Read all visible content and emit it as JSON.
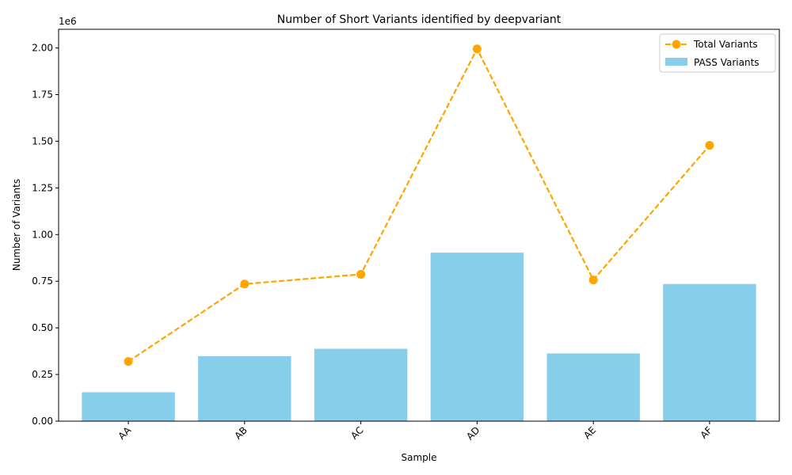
{
  "chart_data": {
    "type": "bar",
    "title": "Number of Short Variants identified by deepvariant",
    "xlabel": "Sample",
    "ylabel": "Number of Variants",
    "y_offset_label": "1e6",
    "categories": [
      "AA",
      "AB",
      "AC",
      "AD",
      "AE",
      "AF"
    ],
    "ylim": [
      0,
      2100000
    ],
    "yticks": [
      0,
      250000,
      500000,
      750000,
      1000000,
      1250000,
      1500000,
      1750000,
      2000000
    ],
    "ytick_labels": [
      "0.00",
      "0.25",
      "0.50",
      "0.75",
      "1.00",
      "1.25",
      "1.50",
      "1.75",
      "2.00"
    ],
    "grid": false,
    "legend_position": "top-right",
    "series": [
      {
        "name": "Total Variants",
        "kind": "line",
        "style": "dashed",
        "marker": "circle",
        "color": "#FFA500",
        "values": [
          320000,
          735000,
          787000,
          1995000,
          757000,
          1478000
        ]
      },
      {
        "name": "PASS Variants",
        "kind": "bar",
        "color": "#87CEEB",
        "values": [
          155000,
          348000,
          388000,
          903000,
          363000,
          735000
        ]
      }
    ]
  }
}
